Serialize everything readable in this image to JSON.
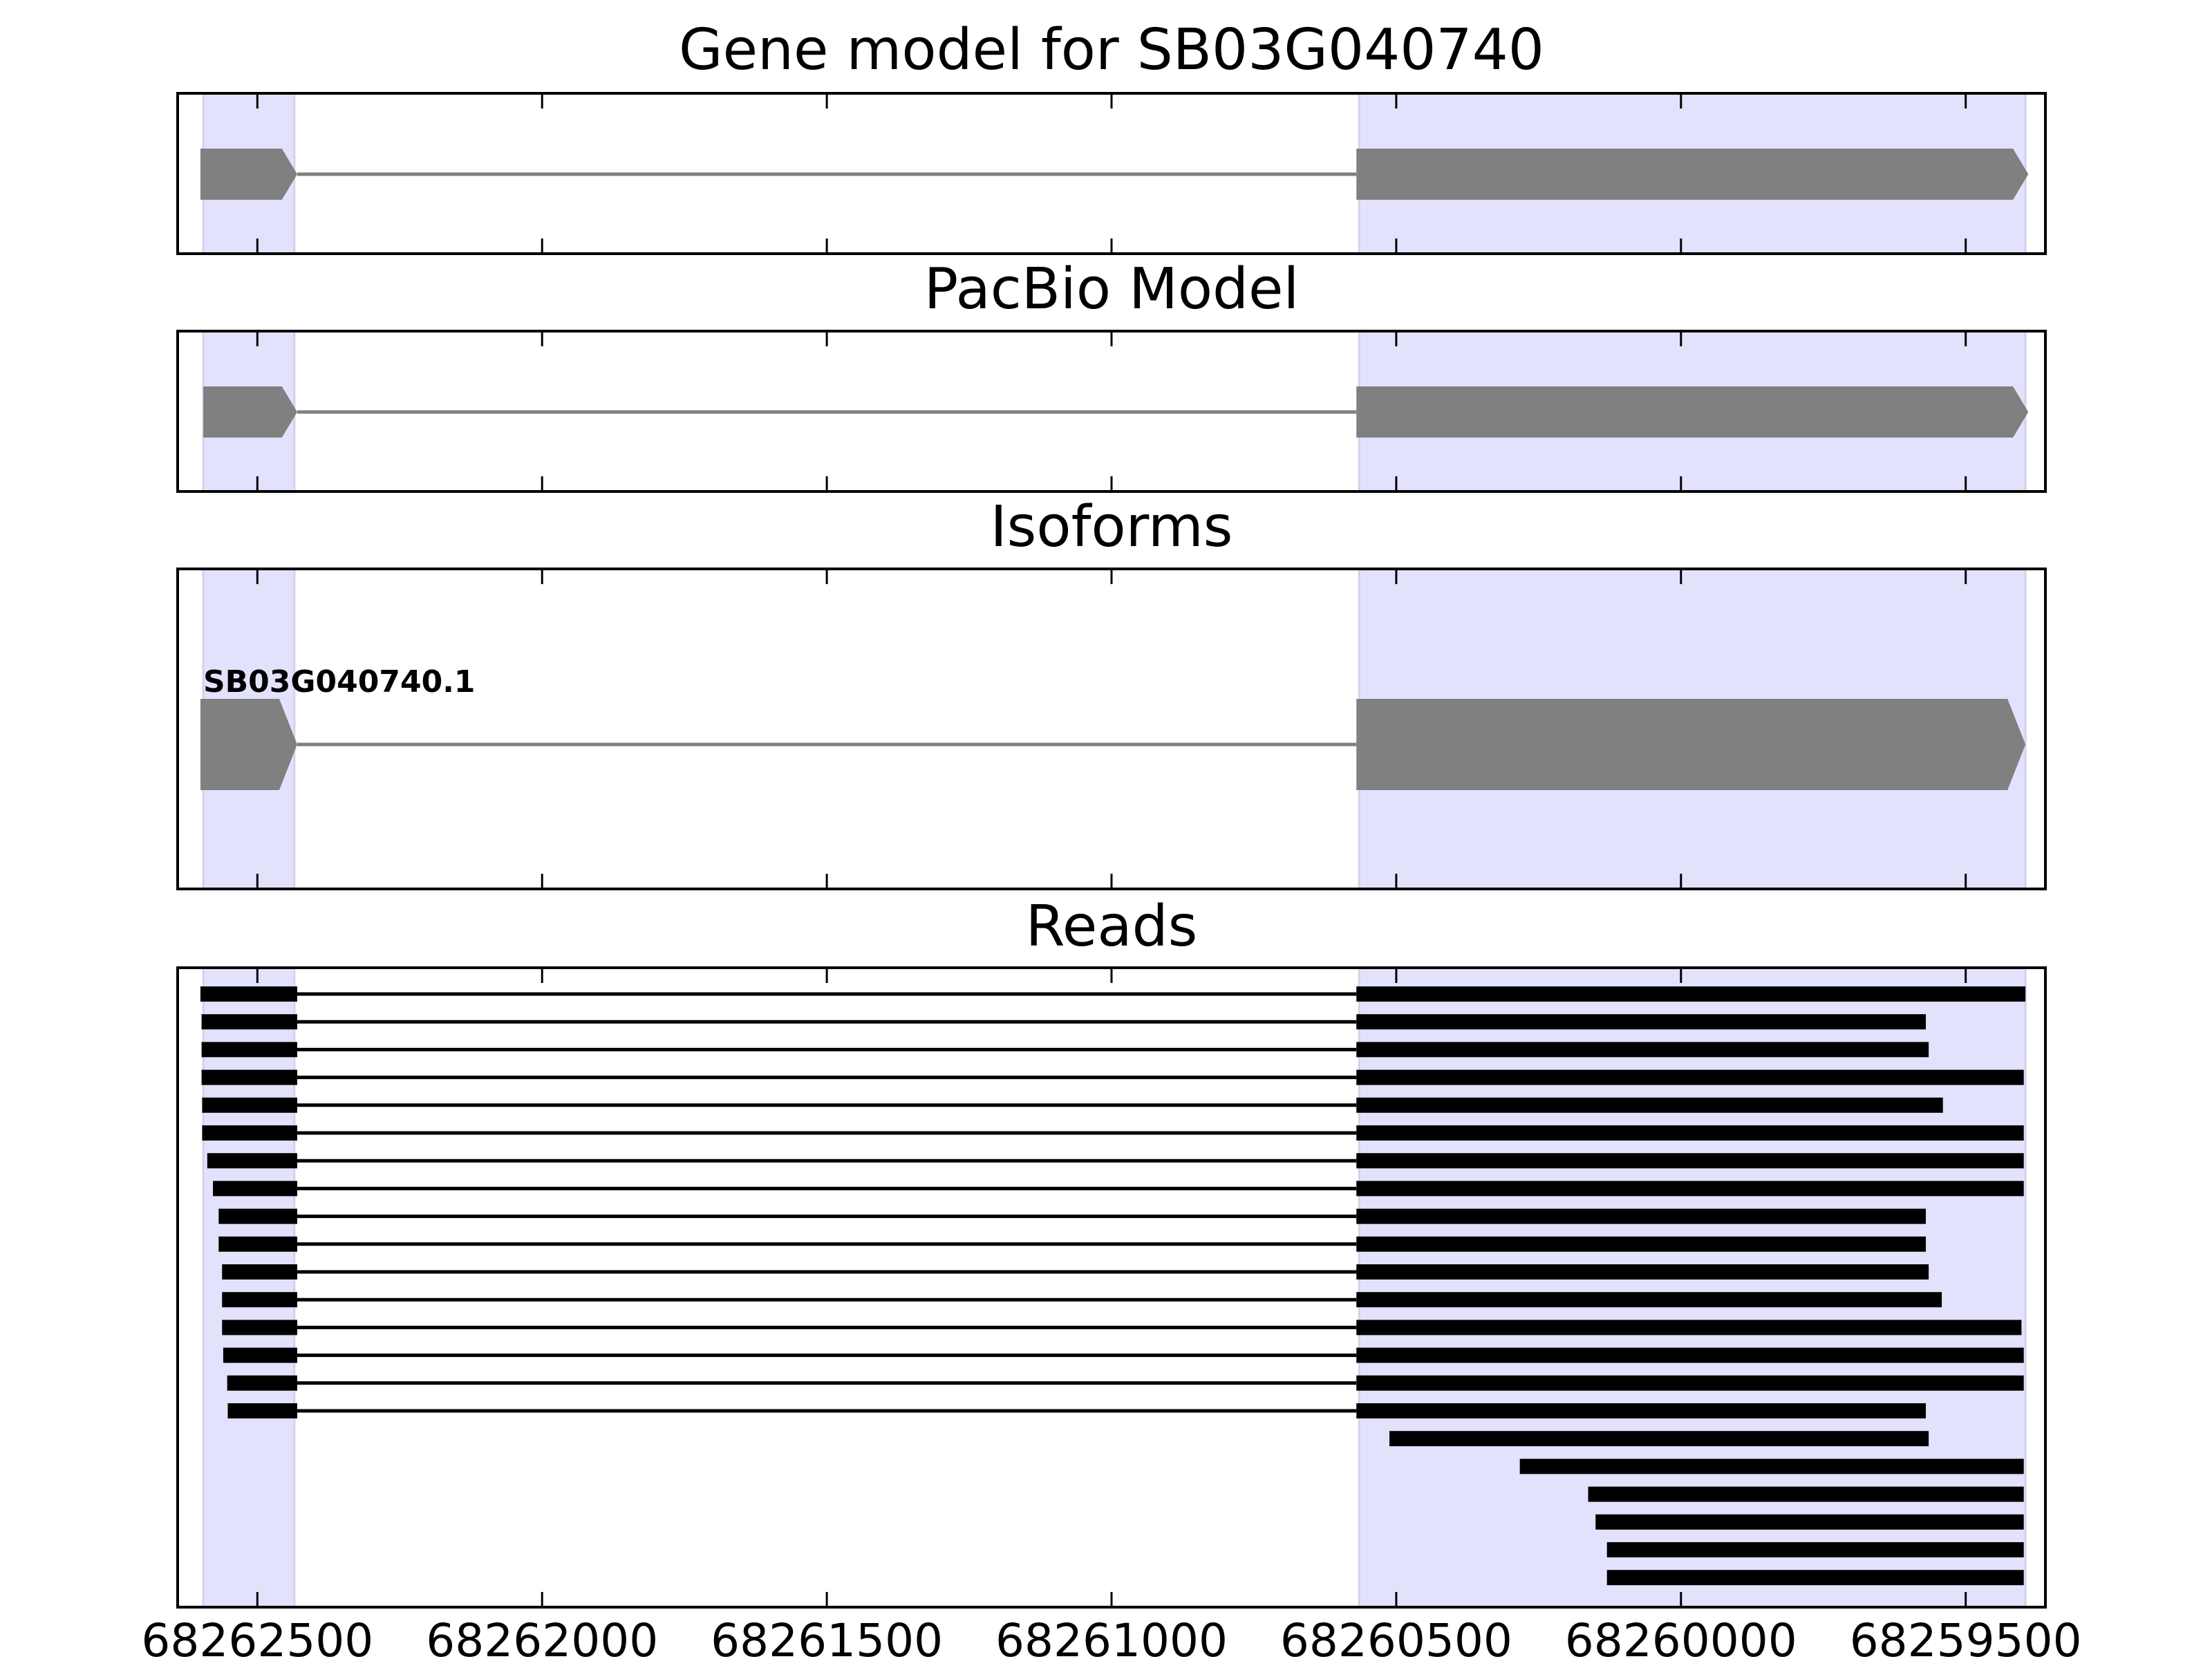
{
  "chart_data": {
    "type": "gene-structure",
    "x_reversed": true,
    "xlim": [
      68262640,
      68259360
    ],
    "xticks": [
      68262500,
      68262000,
      68261500,
      68261000,
      68260500,
      68260000,
      68259500
    ],
    "xtick_labels": [
      "68262500",
      "68262000",
      "68261500",
      "68261000",
      "68260500",
      "68260000",
      "68259500"
    ],
    "highlight_regions": [
      [
        68262595,
        68262435
      ],
      [
        68260565,
        68259395
      ]
    ],
    "panels": {
      "gene_model": {
        "title": "Gene model for SB03G040740",
        "exons": [
          [
            68262600,
            68262430
          ],
          [
            68260570,
            68259390
          ]
        ],
        "intron": [
          68262430,
          68260570
        ]
      },
      "pacbio_model": {
        "title": "PacBio Model",
        "exons": [
          [
            68262595,
            68262430
          ],
          [
            68260570,
            68259390
          ]
        ],
        "intron": [
          68262430,
          68260570
        ]
      },
      "isoforms": {
        "title": "Isoforms",
        "items": [
          {
            "label": "SB03G040740.1",
            "exons": [
              [
                68262600,
                68262430
              ],
              [
                68260570,
                68259395
              ]
            ],
            "intron": [
              68262430,
              68260570
            ]
          }
        ]
      },
      "reads": {
        "title": "Reads",
        "items": [
          {
            "blocks": [
              [
                68262600,
                68262430
              ],
              [
                68260570,
                68259395
              ]
            ]
          },
          {
            "blocks": [
              [
                68262598,
                68262430
              ],
              [
                68260570,
                68259570
              ]
            ]
          },
          {
            "blocks": [
              [
                68262598,
                68262430
              ],
              [
                68260570,
                68259565
              ]
            ]
          },
          {
            "blocks": [
              [
                68262598,
                68262430
              ],
              [
                68260570,
                68259398
              ]
            ]
          },
          {
            "blocks": [
              [
                68262597,
                68262430
              ],
              [
                68260570,
                68259540
              ]
            ]
          },
          {
            "blocks": [
              [
                68262597,
                68262430
              ],
              [
                68260570,
                68259398
              ]
            ]
          },
          {
            "blocks": [
              [
                68262588,
                68262430
              ],
              [
                68260570,
                68259398
              ]
            ]
          },
          {
            "blocks": [
              [
                68262578,
                68262430
              ],
              [
                68260570,
                68259398
              ]
            ]
          },
          {
            "blocks": [
              [
                68262568,
                68262430
              ],
              [
                68260570,
                68259570
              ]
            ]
          },
          {
            "blocks": [
              [
                68262568,
                68262430
              ],
              [
                68260570,
                68259570
              ]
            ]
          },
          {
            "blocks": [
              [
                68262562,
                68262430
              ],
              [
                68260570,
                68259565
              ]
            ]
          },
          {
            "blocks": [
              [
                68262562,
                68262430
              ],
              [
                68260570,
                68259542
              ]
            ]
          },
          {
            "blocks": [
              [
                68262562,
                68262430
              ],
              [
                68260570,
                68259402
              ]
            ]
          },
          {
            "blocks": [
              [
                68262560,
                68262430
              ],
              [
                68260570,
                68259398
              ]
            ]
          },
          {
            "blocks": [
              [
                68262553,
                68262430
              ],
              [
                68260570,
                68259398
              ]
            ]
          },
          {
            "blocks": [
              [
                68262552,
                68262430
              ],
              [
                68260570,
                68259570
              ]
            ]
          },
          {
            "blocks": [
              [
                68260512,
                68259565
              ]
            ]
          },
          {
            "blocks": [
              [
                68260283,
                68259398
              ]
            ]
          },
          {
            "blocks": [
              [
                68260163,
                68259398
              ]
            ]
          },
          {
            "blocks": [
              [
                68260150,
                68259398
              ]
            ]
          },
          {
            "blocks": [
              [
                68260130,
                68259398
              ]
            ]
          },
          {
            "blocks": [
              [
                68260130,
                68259398
              ]
            ]
          }
        ]
      }
    },
    "colors": {
      "exon": "#808080",
      "intron": "#808080",
      "read": "#000000",
      "highlight": "#e2e2fc",
      "highlight_edge": "#d2d2ec",
      "frame": "#000000"
    }
  }
}
